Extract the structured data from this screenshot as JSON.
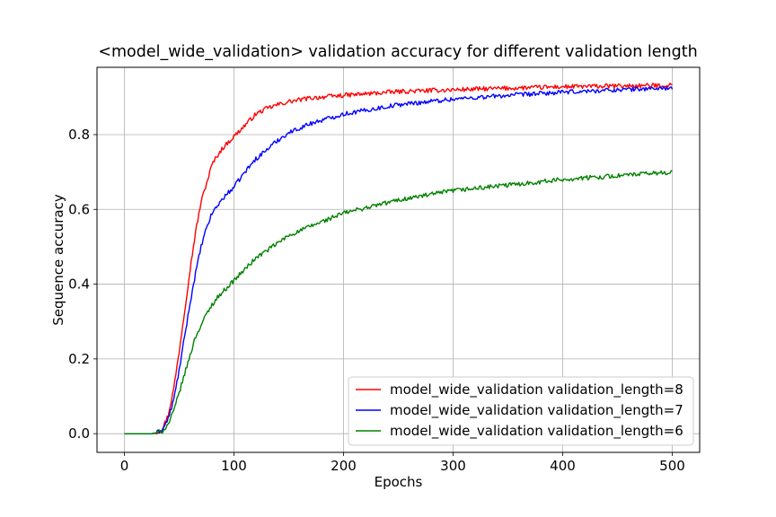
{
  "chart_data": {
    "type": "line",
    "title": "<model_wide_validation> validation accuracy for different validation length",
    "xlabel": "Epochs",
    "ylabel": "Sequence accuracy",
    "xlim": [
      -25,
      525
    ],
    "ylim": [
      -0.05,
      0.98
    ],
    "xticks": [
      0,
      100,
      200,
      300,
      400,
      500
    ],
    "yticks": [
      0.0,
      0.2,
      0.4,
      0.6,
      0.8
    ],
    "grid": true,
    "legend_position": "lower-right",
    "series": [
      {
        "name": "model_wide_validation validation_length=8",
        "color": "#ff0000",
        "points": [
          [
            0,
            0.0
          ],
          [
            25,
            0.0
          ],
          [
            30,
            0.003
          ],
          [
            35,
            0.015
          ],
          [
            40,
            0.05
          ],
          [
            45,
            0.12
          ],
          [
            50,
            0.22
          ],
          [
            55,
            0.33
          ],
          [
            60,
            0.44
          ],
          [
            65,
            0.54
          ],
          [
            70,
            0.62
          ],
          [
            75,
            0.67
          ],
          [
            80,
            0.72
          ],
          [
            85,
            0.745
          ],
          [
            90,
            0.765
          ],
          [
            95,
            0.78
          ],
          [
            100,
            0.795
          ],
          [
            110,
            0.825
          ],
          [
            120,
            0.855
          ],
          [
            130,
            0.87
          ],
          [
            140,
            0.88
          ],
          [
            150,
            0.888
          ],
          [
            170,
            0.898
          ],
          [
            200,
            0.905
          ],
          [
            250,
            0.915
          ],
          [
            300,
            0.92
          ],
          [
            350,
            0.924
          ],
          [
            400,
            0.928
          ],
          [
            450,
            0.93
          ],
          [
            500,
            0.932
          ]
        ]
      },
      {
        "name": "model_wide_validation validation_length=7",
        "color": "#0000ff",
        "points": [
          [
            0,
            0.0
          ],
          [
            25,
            0.0
          ],
          [
            30,
            0.003
          ],
          [
            35,
            0.012
          ],
          [
            40,
            0.04
          ],
          [
            45,
            0.09
          ],
          [
            50,
            0.17
          ],
          [
            55,
            0.26
          ],
          [
            60,
            0.35
          ],
          [
            65,
            0.43
          ],
          [
            70,
            0.5
          ],
          [
            75,
            0.55
          ],
          [
            80,
            0.59
          ],
          [
            85,
            0.61
          ],
          [
            90,
            0.63
          ],
          [
            95,
            0.645
          ],
          [
            100,
            0.66
          ],
          [
            110,
            0.7
          ],
          [
            120,
            0.735
          ],
          [
            130,
            0.76
          ],
          [
            140,
            0.785
          ],
          [
            150,
            0.805
          ],
          [
            170,
            0.83
          ],
          [
            200,
            0.855
          ],
          [
            250,
            0.88
          ],
          [
            300,
            0.895
          ],
          [
            350,
            0.905
          ],
          [
            400,
            0.913
          ],
          [
            450,
            0.92
          ],
          [
            500,
            0.925
          ]
        ]
      },
      {
        "name": "model_wide_validation validation_length=6",
        "color": "#008000",
        "points": [
          [
            0,
            0.0
          ],
          [
            25,
            0.0
          ],
          [
            30,
            0.002
          ],
          [
            35,
            0.008
          ],
          [
            40,
            0.025
          ],
          [
            45,
            0.06
          ],
          [
            50,
            0.11
          ],
          [
            55,
            0.16
          ],
          [
            60,
            0.21
          ],
          [
            65,
            0.26
          ],
          [
            70,
            0.29
          ],
          [
            75,
            0.32
          ],
          [
            80,
            0.345
          ],
          [
            85,
            0.365
          ],
          [
            90,
            0.38
          ],
          [
            95,
            0.395
          ],
          [
            100,
            0.41
          ],
          [
            110,
            0.44
          ],
          [
            120,
            0.47
          ],
          [
            130,
            0.49
          ],
          [
            140,
            0.51
          ],
          [
            150,
            0.53
          ],
          [
            170,
            0.555
          ],
          [
            200,
            0.59
          ],
          [
            250,
            0.625
          ],
          [
            300,
            0.65
          ],
          [
            350,
            0.665
          ],
          [
            400,
            0.68
          ],
          [
            450,
            0.69
          ],
          [
            500,
            0.7
          ]
        ]
      }
    ]
  }
}
